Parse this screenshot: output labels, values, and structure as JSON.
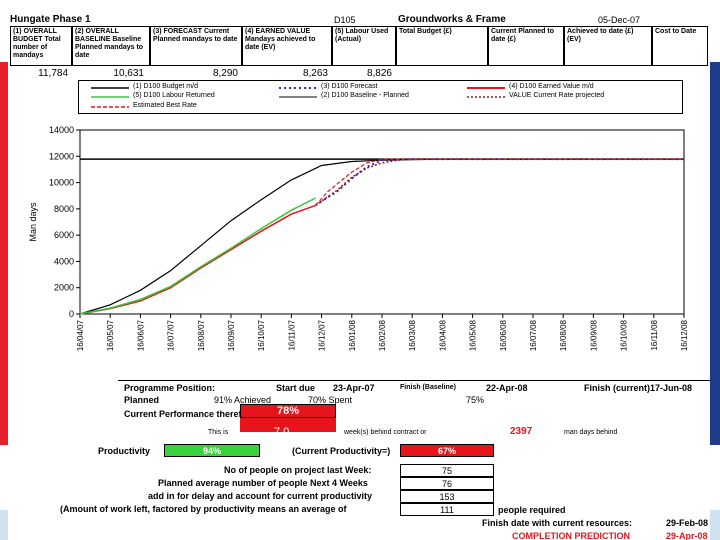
{
  "header": {
    "title": "Hungate Phase 1",
    "code": "D105",
    "package": "Groundworks & Frame",
    "date": "05-Dec-07",
    "col1": "(1) OVERALL BUDGET Total number of mandays",
    "col2": "(2) OVERALL BASELINE Baseline Planned mandays to date",
    "col3": "(3) FORECAST Current Planned mandays to date",
    "col4": "(4) EARNED VALUE Mandays achieved to date (EV)",
    "col5": "(5) Labour Used (Actual)",
    "col6": "Total Budget (£)",
    "col7": "Current Planned to date (£)",
    "col8": "Achieved to date (£) (EV)",
    "col9": "Cost to Date",
    "v1": "11,784",
    "v2": "10,631",
    "v3": "8,290",
    "v4": "8,263",
    "v5": "8,826"
  },
  "legend": {
    "items": [
      {
        "label": "(1) D100 Budget m/d",
        "color": "#000000",
        "dash": "solid"
      },
      {
        "label": "(3) D100 Forecast",
        "color": "#3a2aa8",
        "dash": "dot"
      },
      {
        "label": "(4) D100 Earned Value m/d",
        "color": "#e8141c",
        "dash": "solid"
      },
      {
        "label": "(5) D100 Labour Returned",
        "color": "#38c83a",
        "dash": "solid"
      },
      {
        "label": "(2) D100 Baseline - Planned",
        "color": "#000000",
        "dash": "solid"
      },
      {
        "label": "VALUE Current Rate projected",
        "color": "#8a1a1a",
        "dash": "dot"
      },
      {
        "label": "Estimated Best Rate",
        "color": "#e8141c",
        "dash": "dash"
      }
    ]
  },
  "chart_data": {
    "type": "line",
    "ylabel": "Man days",
    "ylim": [
      0,
      14000
    ],
    "yticks": [
      "0",
      "2000",
      "4000",
      "6000",
      "8000",
      "10000",
      "12000",
      "14000"
    ],
    "xticks": [
      "16/04/07",
      "16/05/07",
      "16/06/07",
      "16/07/07",
      "16/08/07",
      "16/09/07",
      "16/10/07",
      "16/11/07",
      "16/12/07",
      "16/01/08",
      "16/02/08",
      "16/03/08",
      "16/04/08",
      "16/05/08",
      "16/06/08",
      "16/07/08",
      "16/08/08",
      "16/09/08",
      "16/10/08",
      "16/11/08",
      "16/12/08"
    ],
    "series": [
      {
        "name": "(1) D100 Budget m/d",
        "x": [
          0,
          20
        ],
        "y": [
          11784,
          11784
        ]
      },
      {
        "name": "(2) D100 Baseline - Planned",
        "x": [
          0,
          1,
          2,
          3,
          4,
          5,
          6,
          7,
          8,
          9,
          10,
          11,
          12,
          20
        ],
        "y": [
          0,
          700,
          1800,
          3300,
          5200,
          7100,
          8700,
          10200,
          11300,
          11600,
          11700,
          11750,
          11784,
          11784
        ]
      },
      {
        "name": "(3) D100 Forecast",
        "x": [
          7.8,
          8.5,
          9,
          9.5,
          10,
          11,
          12,
          20
        ],
        "y": [
          8290,
          9300,
          10300,
          11200,
          11700,
          11784,
          11784,
          11784
        ]
      },
      {
        "name": "(4) D100 Earned Value m/d",
        "x": [
          0,
          1,
          2,
          3,
          4,
          5,
          6,
          7,
          7.8
        ],
        "y": [
          0,
          400,
          1000,
          2000,
          3500,
          4900,
          6300,
          7600,
          8263
        ]
      },
      {
        "name": "(5) D100 Labour Returned",
        "x": [
          0,
          1,
          2,
          3,
          4,
          5,
          6,
          7,
          7.8
        ],
        "y": [
          0,
          450,
          1100,
          2100,
          3600,
          5000,
          6500,
          7900,
          8826
        ]
      },
      {
        "name": "VALUE Current Rate projected",
        "x": [
          7.8,
          8.5,
          9,
          9.5,
          10,
          10.5,
          11,
          20
        ],
        "y": [
          8263,
          9400,
          10400,
          11100,
          11500,
          11700,
          11784,
          11784
        ]
      },
      {
        "name": "Estimated Best Rate",
        "x": [
          7.8,
          8.2,
          9,
          9.5,
          10,
          20
        ],
        "y": [
          8263,
          9300,
          10800,
          11500,
          11784,
          11784
        ]
      }
    ]
  },
  "programme": {
    "position_label": "Programme Position:",
    "start_label": "Start due",
    "start_date": "23-Apr-07",
    "finish_baseline_label": "Finish (Baseline)",
    "finish_baseline_date": "22-Apr-08",
    "finish_current_label": "Finish (current)",
    "finish_current_date": "17-Jun-08",
    "planned_label": "Planned",
    "planned_value": "91% Achieved",
    "spent_label": "70% Spent",
    "spent_value": "75%",
    "current_perf_label": "Current Performance therefore",
    "current_perf_value": "78%",
    "this_is_label": "This is",
    "weeks_value": "7.0",
    "weeks_label": "week(s) behind contract or",
    "mandays_value": "2397",
    "mandays_label": "man days behind",
    "productivity_label": "Productivity",
    "productivity_value": "94%",
    "current_productivity_label": "(Current Productivity=)",
    "current_productivity_value": "67%",
    "people_last_week_label": "No of people on project last Week:",
    "people_last_week_value": "75",
    "planned_people_label": "Planned average number of people Next 4 Weeks",
    "planned_people_value": "76",
    "addin_label": "add in for delay and account for current productivity",
    "addin_value": "153",
    "amount_label": "(Amount of work left, factored by productivity means an average of",
    "amount_value": "111",
    "people_required_label": "people required",
    "finish_date_label": "Finish date with current resources:",
    "finish_date_value": "29-Feb-08",
    "completion_label": "COMPLETION PREDICTION",
    "completion_value": "29-Apr-08"
  }
}
